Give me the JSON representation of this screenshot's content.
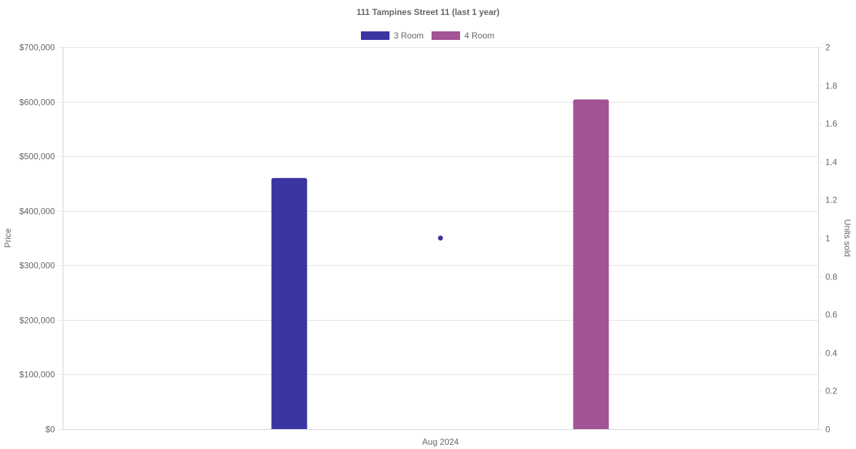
{
  "chart_data": {
    "type": "bar",
    "title": "111 Tampines Street 11 (last 1 year)",
    "categories": [
      "Aug 2024"
    ],
    "series": [
      {
        "name": "3 Room",
        "type": "bar",
        "axis": "price",
        "color": "#3A35A0",
        "values": [
          460000
        ]
      },
      {
        "name": "4 Room",
        "type": "bar",
        "axis": "price",
        "color": "#A35396",
        "values": [
          604000
        ]
      },
      {
        "name": "",
        "type": "point",
        "axis": "units",
        "color": "#3A35A0",
        "values": [
          1
        ]
      }
    ],
    "y_left": {
      "label": "Price",
      "ylim": [
        0,
        700000
      ],
      "ticks": [
        0,
        100000,
        200000,
        300000,
        400000,
        500000,
        600000,
        700000
      ],
      "tick_labels": [
        "$0",
        "$100,000",
        "$200,000",
        "$300,000",
        "$400,000",
        "$500,000",
        "$600,000",
        "$700,000"
      ]
    },
    "y_right": {
      "label": "Units sold",
      "ylim": [
        0,
        2
      ],
      "ticks": [
        0,
        0.2,
        0.4,
        0.6,
        0.8,
        1,
        1.2,
        1.4,
        1.6,
        1.8,
        2
      ],
      "tick_labels": [
        "0",
        "0.2",
        "0.4",
        "0.6",
        "0.8",
        "1",
        "1.2",
        "1.4",
        "1.6",
        "1.8",
        "2"
      ]
    },
    "grid": true,
    "legend": "top-center"
  }
}
